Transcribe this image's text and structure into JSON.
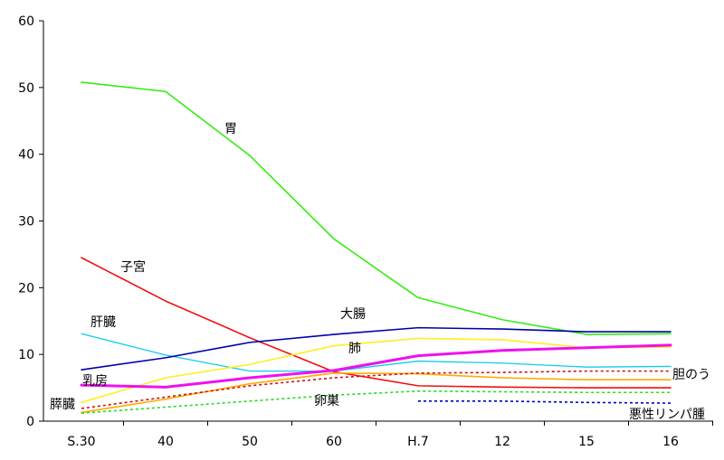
{
  "chart_data": {
    "type": "line",
    "categories": [
      "S.30",
      "40",
      "50",
      "60",
      "H.7",
      "12",
      "15",
      "16"
    ],
    "ylim": [
      0,
      60
    ],
    "yticks": [
      0,
      10,
      20,
      30,
      40,
      50,
      60
    ],
    "grid": false,
    "legend": "inline labels",
    "series": [
      {
        "name": "胃",
        "color": "#33ee11",
        "style": "solid",
        "width": 1.6,
        "values": [
          50.8,
          49.4,
          39.8,
          27.3,
          18.5,
          15.2,
          13.0,
          13.1
        ]
      },
      {
        "name": "子宮",
        "color": "#ee1111",
        "style": "solid",
        "width": 1.6,
        "values": [
          24.5,
          18.0,
          12.5,
          7.4,
          5.3,
          5.1,
          5.0,
          5.0
        ]
      },
      {
        "name": "肝臓",
        "color": "#11ccee",
        "style": "solid",
        "width": 1.3,
        "values": [
          13.1,
          9.9,
          7.5,
          7.5,
          9.0,
          8.7,
          8.1,
          8.2
        ]
      },
      {
        "name": "大腸",
        "color": "#0000aa",
        "style": "solid",
        "width": 1.6,
        "values": [
          7.7,
          9.5,
          11.8,
          13.0,
          14.0,
          13.8,
          13.4,
          13.4
        ]
      },
      {
        "name": "肺",
        "color": "#ffee22",
        "style": "solid",
        "width": 1.6,
        "values": [
          2.8,
          6.5,
          8.5,
          11.3,
          12.4,
          12.2,
          11.0,
          11.1
        ]
      },
      {
        "name": "乳房",
        "color": "#ee11ee",
        "style": "solid",
        "width": 3,
        "values": [
          5.4,
          5.1,
          6.5,
          7.6,
          9.8,
          10.6,
          11.0,
          11.4
        ]
      },
      {
        "name": "膵臓",
        "color": "#ffaa00",
        "style": "solid",
        "width": 1.6,
        "values": [
          1.3,
          3.3,
          5.6,
          7.2,
          7.1,
          6.5,
          6.2,
          6.2
        ]
      },
      {
        "name": "胆のう",
        "color": "#cc1111",
        "style": "dotted",
        "width": 1.6,
        "values": [
          1.9,
          3.6,
          5.3,
          6.5,
          7.2,
          7.3,
          7.5,
          7.5
        ]
      },
      {
        "name": "卵巣",
        "color": "#22dd22",
        "style": "dotted",
        "width": 1.6,
        "values": [
          1.2,
          2.1,
          3.0,
          3.9,
          4.5,
          4.4,
          4.3,
          4.3
        ]
      },
      {
        "name": "悪性リンパ腫",
        "color": "#0000cc",
        "style": "dotted",
        "width": 1.6,
        "values": [
          null,
          null,
          null,
          null,
          3.0,
          3.0,
          2.8,
          2.7
        ]
      }
    ]
  }
}
